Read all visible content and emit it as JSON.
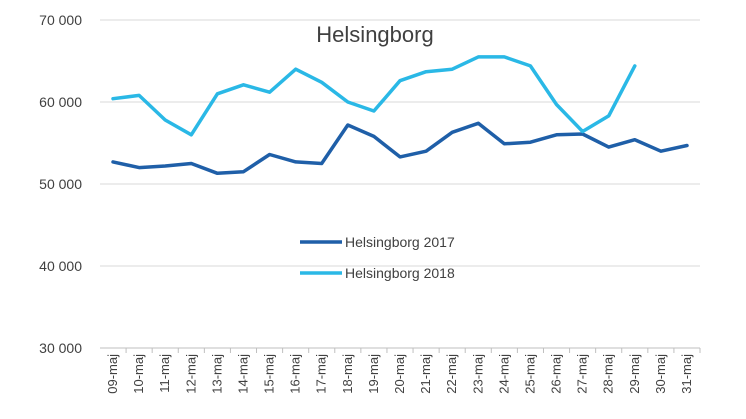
{
  "chart_data": {
    "type": "line",
    "title": "Helsingborg",
    "xlabel": "",
    "ylabel": "",
    "ylim": [
      30000,
      70000
    ],
    "y_ticks": [
      "30 000",
      "40 000",
      "50 000",
      "60 000",
      "70 000"
    ],
    "y_tick_values": [
      30000,
      40000,
      50000,
      60000,
      70000
    ],
    "grid": "horizontal",
    "legend_position": "center",
    "categories": [
      "09-maj",
      "10-maj",
      "11-maj",
      "12-maj",
      "13-maj",
      "14-maj",
      "15-maj",
      "16-maj",
      "17-maj",
      "18-maj",
      "19-maj",
      "20-maj",
      "21-maj",
      "22-maj",
      "23-maj",
      "24-maj",
      "25-maj",
      "26-maj",
      "27-maj",
      "28-maj",
      "29-maj",
      "30-maj",
      "31-maj"
    ],
    "series": [
      {
        "name": "Helsingborg 2017",
        "color": "#1f5fa8",
        "values": [
          52700,
          52000,
          52200,
          52500,
          51300,
          51500,
          53600,
          52700,
          52500,
          57200,
          55800,
          53300,
          54000,
          56300,
          57400,
          54900,
          55100,
          56000,
          56100,
          54500,
          55400,
          54000,
          54700
        ]
      },
      {
        "name": "Helsingborg 2018",
        "color": "#2ab8e6",
        "values": [
          60400,
          60800,
          57800,
          56000,
          61000,
          62100,
          61200,
          64000,
          62400,
          60000,
          58900,
          62600,
          63700,
          64000,
          65500,
          65500,
          64400,
          59700,
          56400,
          58300,
          64400,
          null,
          null
        ]
      }
    ]
  }
}
